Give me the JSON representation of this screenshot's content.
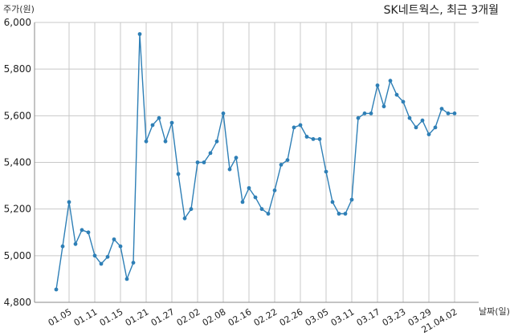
{
  "chart_data": {
    "type": "line",
    "title": "SK네트웍스, 최근 3개월",
    "ylabel": "주가(원)",
    "xlabel": "날짜(일)",
    "ylim": [
      4800,
      6000
    ],
    "yticks": [
      4800,
      5000,
      5200,
      5400,
      5600,
      5800,
      6000
    ],
    "ytick_labels": [
      "4,800",
      "5,000",
      "5,200",
      "5,400",
      "5,600",
      "5,800",
      "6,000"
    ],
    "grid": true,
    "color": "#2e7fb6",
    "xtick_indices": [
      2,
      6,
      10,
      14,
      18,
      22,
      26,
      30,
      34,
      38,
      42,
      46,
      50,
      54,
      58,
      62
    ],
    "xtick_labels": [
      "01.05",
      "01.11",
      "01.15",
      "01.21",
      "01.27",
      "02.02",
      "02.08",
      "02.16",
      "02.22",
      "02.26",
      "03.05",
      "03.11",
      "03.17",
      "03.23",
      "03.29",
      "21.04.02"
    ],
    "values": [
      4855,
      5040,
      5230,
      5050,
      5110,
      5100,
      5000,
      4965,
      4995,
      5070,
      5040,
      4900,
      4970,
      5950,
      5490,
      5560,
      5590,
      5490,
      5570,
      5350,
      5160,
      5200,
      5400,
      5400,
      5440,
      5490,
      5610,
      5370,
      5420,
      5230,
      5290,
      5250,
      5200,
      5180,
      5280,
      5390,
      5410,
      5550,
      5560,
      5510,
      5500,
      5500,
      5360,
      5230,
      5180,
      5180,
      5240,
      5590,
      5610,
      5610,
      5730,
      5640,
      5750,
      5690,
      5660,
      5590,
      5550,
      5580,
      5520,
      5550,
      5630,
      5610,
      5610
    ]
  }
}
